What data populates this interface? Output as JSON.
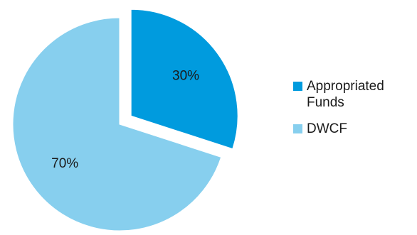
{
  "chart_data": {
    "type": "pie",
    "categories": [
      "Appropriated Funds",
      "DWCF"
    ],
    "values": [
      30,
      70
    ],
    "value_labels": [
      "30%",
      "70%"
    ],
    "colors": [
      "#009bde",
      "#87cfee"
    ],
    "exploded": "Appropriated Funds",
    "start_angle": "12 o'clock, clockwise",
    "legend": {
      "position": "right",
      "entries": [
        "Appropriated Funds",
        "DWCF"
      ]
    }
  }
}
